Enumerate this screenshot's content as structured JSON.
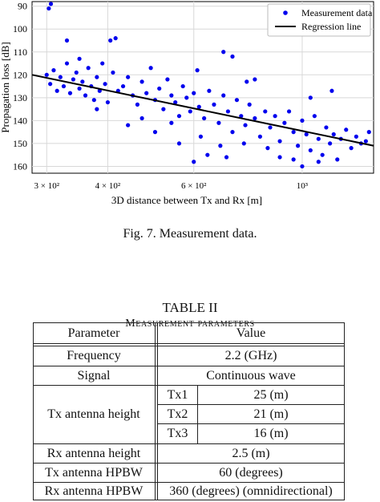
{
  "chart_data": {
    "type": "scatter",
    "xlabel": "3D distance between Tx and Rx [m]",
    "ylabel": "Propagation loss [dB]",
    "x_scale": "log",
    "xlim": [
      280,
      1400
    ],
    "ylim": [
      88,
      163
    ],
    "y_inverted": true,
    "x_ticks": [
      {
        "value": 300,
        "label": "3 × 10²"
      },
      {
        "value": 400,
        "label": "4 × 10²"
      },
      {
        "value": 600,
        "label": "6 × 10²"
      },
      {
        "value": 1000,
        "label": "10³"
      }
    ],
    "y_ticks": [
      90,
      100,
      110,
      120,
      130,
      140,
      150,
      160
    ],
    "grid": true,
    "legend_position": "top-right",
    "series": [
      {
        "name": "Measurement data",
        "color": "#0000ee",
        "marker": "circle",
        "points": [
          [
            300,
            120
          ],
          [
            305,
            124
          ],
          [
            310,
            118
          ],
          [
            315,
            127
          ],
          [
            320,
            121
          ],
          [
            325,
            125
          ],
          [
            330,
            115
          ],
          [
            335,
            128
          ],
          [
            340,
            122
          ],
          [
            345,
            119
          ],
          [
            350,
            126
          ],
          [
            355,
            123
          ],
          [
            360,
            129
          ],
          [
            365,
            117
          ],
          [
            370,
            125
          ],
          [
            375,
            131
          ],
          [
            380,
            121
          ],
          [
            385,
            127
          ],
          [
            390,
            115
          ],
          [
            395,
            124
          ],
          [
            400,
            132
          ],
          [
            410,
            119
          ],
          [
            420,
            127
          ],
          [
            430,
            125
          ],
          [
            440,
            121
          ],
          [
            450,
            129
          ],
          [
            460,
            133
          ],
          [
            470,
            123
          ],
          [
            480,
            128
          ],
          [
            490,
            117
          ],
          [
            500,
            131
          ],
          [
            510,
            126
          ],
          [
            520,
            135
          ],
          [
            530,
            122
          ],
          [
            540,
            129
          ],
          [
            550,
            132
          ],
          [
            560,
            138
          ],
          [
            570,
            125
          ],
          [
            580,
            130
          ],
          [
            590,
            136
          ],
          [
            600,
            128
          ],
          [
            615,
            134
          ],
          [
            630,
            139
          ],
          [
            645,
            127
          ],
          [
            660,
            133
          ],
          [
            675,
            141
          ],
          [
            690,
            129
          ],
          [
            705,
            136
          ],
          [
            720,
            145
          ],
          [
            735,
            131
          ],
          [
            750,
            138
          ],
          [
            765,
            142
          ],
          [
            780,
            133
          ],
          [
            800,
            139
          ],
          [
            820,
            147
          ],
          [
            840,
            136
          ],
          [
            860,
            143
          ],
          [
            880,
            138
          ],
          [
            900,
            149
          ],
          [
            920,
            141
          ],
          [
            940,
            136
          ],
          [
            960,
            145
          ],
          [
            980,
            151
          ],
          [
            1000,
            140
          ],
          [
            1020,
            146
          ],
          [
            1040,
            153
          ],
          [
            1060,
            138
          ],
          [
            1080,
            148
          ],
          [
            1100,
            155
          ],
          [
            1120,
            143
          ],
          [
            1140,
            150
          ],
          [
            1160,
            146
          ],
          [
            1180,
            157
          ],
          [
            1200,
            148
          ],
          [
            1230,
            144
          ],
          [
            1260,
            152
          ],
          [
            1290,
            147
          ],
          [
            1320,
            150
          ],
          [
            1350,
            149
          ],
          [
            1370,
            145
          ],
          [
            303,
            91
          ],
          [
            306,
            89
          ],
          [
            330,
            105
          ],
          [
            405,
            105
          ],
          [
            415,
            104
          ],
          [
            350,
            113
          ],
          [
            690,
            110
          ],
          [
            610,
            118
          ],
          [
            720,
            112
          ],
          [
            770,
            123
          ],
          [
            800,
            122
          ],
          [
            1040,
            130
          ],
          [
            1150,
            127
          ],
          [
            440,
            142
          ],
          [
            500,
            145
          ],
          [
            560,
            150
          ],
          [
            600,
            158
          ],
          [
            640,
            155
          ],
          [
            700,
            156
          ],
          [
            760,
            150
          ],
          [
            850,
            152
          ],
          [
            900,
            156
          ],
          [
            1000,
            160
          ],
          [
            1080,
            158
          ],
          [
            470,
            139
          ],
          [
            380,
            135
          ],
          [
            540,
            141
          ],
          [
            620,
            147
          ],
          [
            680,
            151
          ],
          [
            960,
            157
          ]
        ]
      },
      {
        "name": "Regression line",
        "color": "#000000",
        "type": "line",
        "points": [
          [
            280,
            120
          ],
          [
            1400,
            151
          ]
        ]
      }
    ]
  },
  "figure": {
    "caption": "Fig. 7.  Measurement data."
  },
  "table": {
    "title": "TABLE II",
    "subtitle": "Measurement parameters",
    "headers": [
      "Parameter",
      "Value"
    ],
    "rows": {
      "frequency": {
        "label": "Frequency",
        "value": "2.2 (GHz)"
      },
      "signal": {
        "label": "Signal",
        "value": "Continuous wave"
      },
      "tx_height": {
        "label": "Tx antenna height",
        "sub": [
          {
            "tx": "Tx1",
            "value": "25 (m)"
          },
          {
            "tx": "Tx2",
            "value": "21 (m)"
          },
          {
            "tx": "Tx3",
            "value": "16 (m)"
          }
        ]
      },
      "rx_height": {
        "label": "Rx antenna height",
        "value": "2.5 (m)"
      },
      "tx_hpbw": {
        "label": "Tx antenna HPBW",
        "value": "60 (degrees)"
      },
      "rx_hpbw": {
        "label": "Rx antenna HPBW",
        "value": "360 (degrees) (omnidirectional)"
      }
    }
  }
}
